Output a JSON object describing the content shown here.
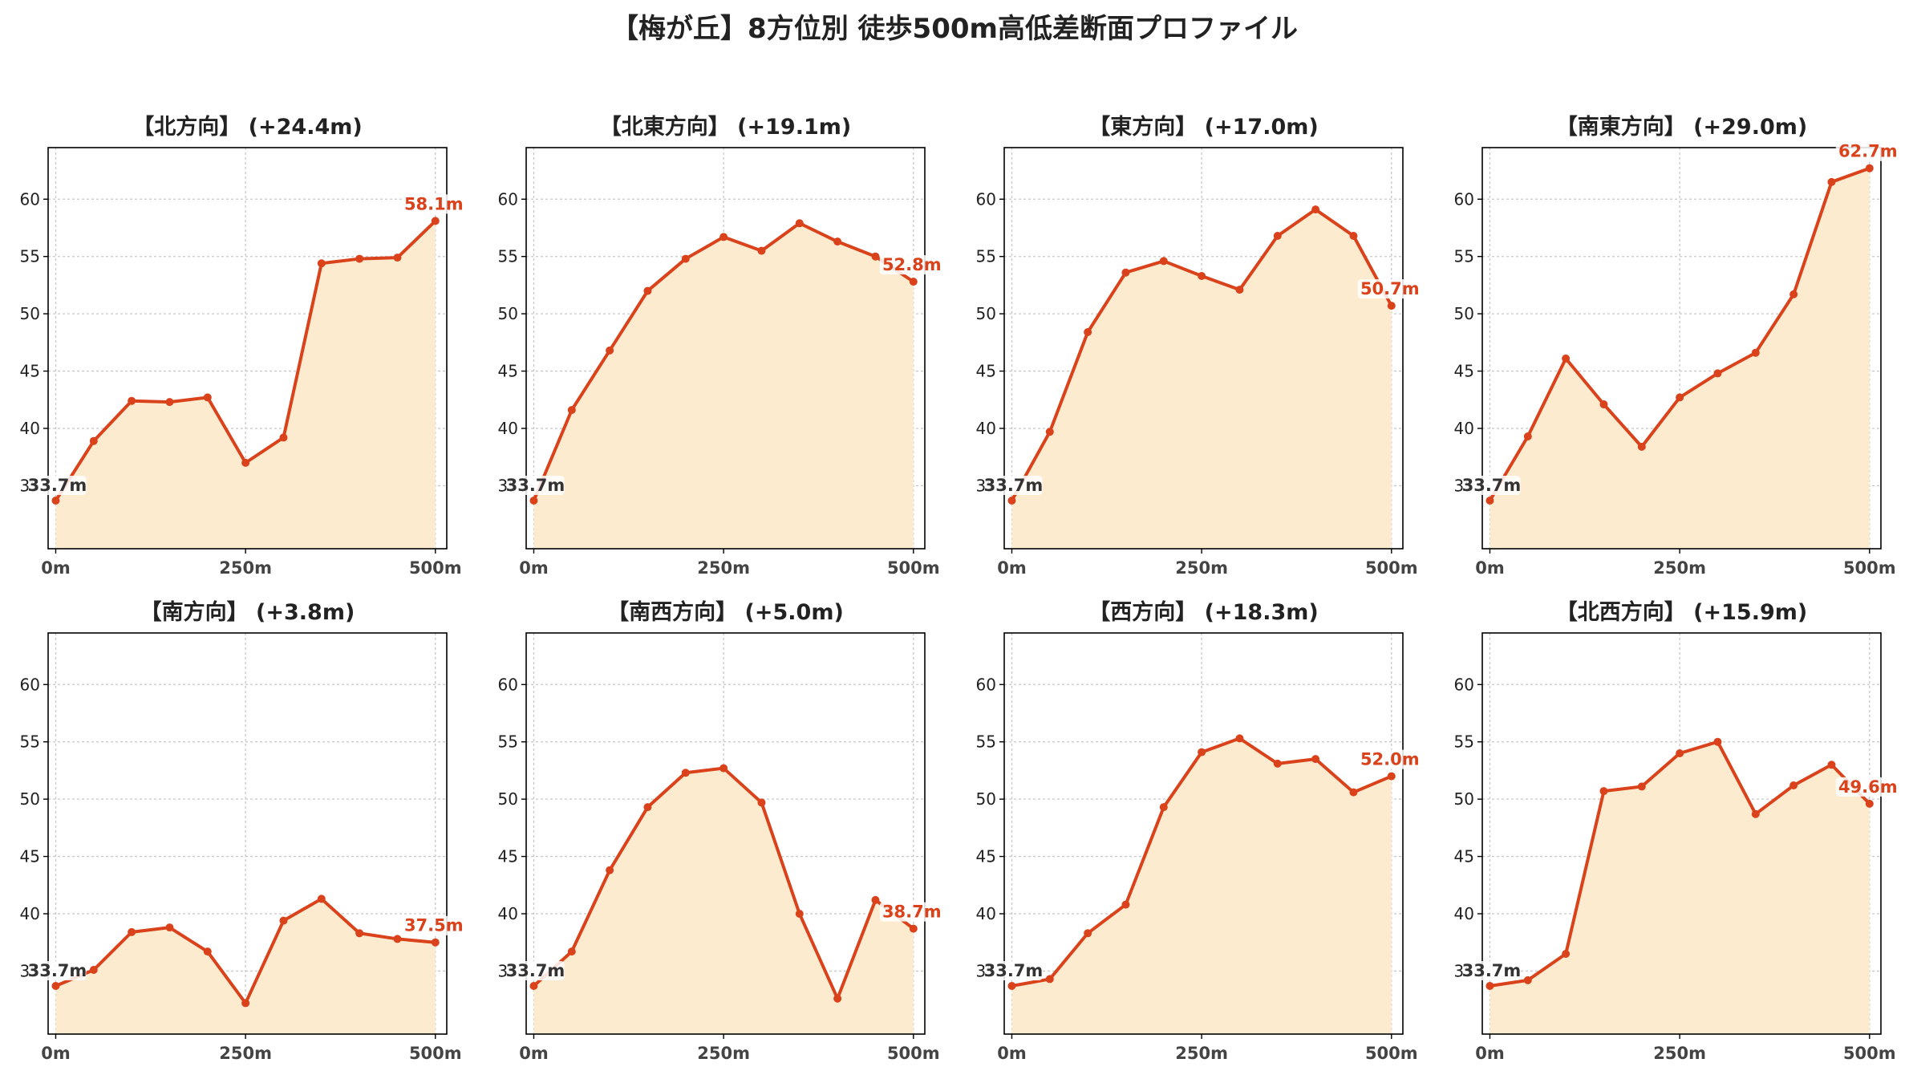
{
  "figure": {
    "title": "【梅が丘】8方位別 徒歩500m高低差断面プロファイル"
  },
  "colors": {
    "line": "#d9421a",
    "fill": "#fdebd0",
    "start_label": "#333333",
    "grid": "#c8c8c8",
    "axis": "#000000"
  },
  "chart_data": [
    {
      "type": "area",
      "title": "【北方向】 (+24.4m)",
      "x": [
        0,
        50,
        100,
        150,
        200,
        250,
        300,
        350,
        400,
        450,
        500
      ],
      "xticks": [
        0,
        250,
        500
      ],
      "xtick_labels": [
        "0m",
        "250m",
        "500m"
      ],
      "yticks": [
        35,
        40,
        45,
        50,
        55,
        60
      ],
      "ytick_labels": [
        "35",
        "40",
        "45",
        "50",
        "55",
        "60"
      ],
      "xlim": [
        -10,
        515
      ],
      "ylim": [
        29.5,
        64.5
      ],
      "grid": true,
      "values": [
        33.7,
        38.9,
        42.4,
        42.3,
        42.7,
        37.0,
        39.2,
        54.4,
        54.8,
        54.9,
        58.1
      ],
      "start_label": "33.7m",
      "end_label": "58.1m"
    },
    {
      "type": "area",
      "title": "【北東方向】 (+19.1m)",
      "x": [
        0,
        50,
        100,
        150,
        200,
        250,
        300,
        350,
        400,
        450,
        500
      ],
      "xticks": [
        0,
        250,
        500
      ],
      "xtick_labels": [
        "0m",
        "250m",
        "500m"
      ],
      "yticks": [
        35,
        40,
        45,
        50,
        55,
        60
      ],
      "ytick_labels": [
        "35",
        "40",
        "45",
        "50",
        "55",
        "60"
      ],
      "xlim": [
        -10,
        515
      ],
      "ylim": [
        29.5,
        64.5
      ],
      "grid": true,
      "values": [
        33.7,
        41.6,
        46.8,
        52.0,
        54.8,
        56.7,
        55.5,
        57.9,
        56.3,
        55.0,
        52.8
      ],
      "start_label": "33.7m",
      "end_label": "52.8m"
    },
    {
      "type": "area",
      "title": "【東方向】 (+17.0m)",
      "x": [
        0,
        50,
        100,
        150,
        200,
        250,
        300,
        350,
        400,
        450,
        500
      ],
      "xticks": [
        0,
        250,
        500
      ],
      "xtick_labels": [
        "0m",
        "250m",
        "500m"
      ],
      "yticks": [
        35,
        40,
        45,
        50,
        55,
        60
      ],
      "ytick_labels": [
        "35",
        "40",
        "45",
        "50",
        "55",
        "60"
      ],
      "xlim": [
        -10,
        515
      ],
      "ylim": [
        29.5,
        64.5
      ],
      "grid": true,
      "values": [
        33.7,
        39.7,
        48.4,
        53.6,
        54.6,
        53.3,
        52.1,
        56.8,
        59.1,
        56.8,
        50.7
      ],
      "start_label": "33.7m",
      "end_label": "50.7m"
    },
    {
      "type": "area",
      "title": "【南東方向】 (+29.0m)",
      "x": [
        0,
        50,
        100,
        150,
        200,
        250,
        300,
        350,
        400,
        450,
        500
      ],
      "xticks": [
        0,
        250,
        500
      ],
      "xtick_labels": [
        "0m",
        "250m",
        "500m"
      ],
      "yticks": [
        35,
        40,
        45,
        50,
        55,
        60
      ],
      "ytick_labels": [
        "35",
        "40",
        "45",
        "50",
        "55",
        "60"
      ],
      "xlim": [
        -10,
        515
      ],
      "ylim": [
        29.5,
        64.5
      ],
      "grid": true,
      "values": [
        33.7,
        39.3,
        46.1,
        42.1,
        38.4,
        42.7,
        44.8,
        46.6,
        51.7,
        61.5,
        62.7
      ],
      "start_label": "33.7m",
      "end_label": "62.7m"
    },
    {
      "type": "area",
      "title": "【南方向】 (+3.8m)",
      "x": [
        0,
        50,
        100,
        150,
        200,
        250,
        300,
        350,
        400,
        450,
        500
      ],
      "xticks": [
        0,
        250,
        500
      ],
      "xtick_labels": [
        "0m",
        "250m",
        "500m"
      ],
      "yticks": [
        35,
        40,
        45,
        50,
        55,
        60
      ],
      "ytick_labels": [
        "35",
        "40",
        "45",
        "50",
        "55",
        "60"
      ],
      "xlim": [
        -10,
        515
      ],
      "ylim": [
        29.5,
        64.5
      ],
      "grid": true,
      "values": [
        33.7,
        35.1,
        38.4,
        38.8,
        36.7,
        32.2,
        39.4,
        41.3,
        38.3,
        37.8,
        37.5
      ],
      "start_label": "33.7m",
      "end_label": "37.5m"
    },
    {
      "type": "area",
      "title": "【南西方向】 (+5.0m)",
      "x": [
        0,
        50,
        100,
        150,
        200,
        250,
        300,
        350,
        400,
        450,
        500
      ],
      "xticks": [
        0,
        250,
        500
      ],
      "xtick_labels": [
        "0m",
        "250m",
        "500m"
      ],
      "yticks": [
        35,
        40,
        45,
        50,
        55,
        60
      ],
      "ytick_labels": [
        "35",
        "40",
        "45",
        "50",
        "55",
        "60"
      ],
      "xlim": [
        -10,
        515
      ],
      "ylim": [
        29.5,
        64.5
      ],
      "grid": true,
      "values": [
        33.7,
        36.7,
        43.8,
        49.3,
        52.3,
        52.7,
        49.7,
        40.0,
        32.6,
        41.2,
        38.7
      ],
      "start_label": "33.7m",
      "end_label": "38.7m"
    },
    {
      "type": "area",
      "title": "【西方向】 (+18.3m)",
      "x": [
        0,
        50,
        100,
        150,
        200,
        250,
        300,
        350,
        400,
        450,
        500
      ],
      "xticks": [
        0,
        250,
        500
      ],
      "xtick_labels": [
        "0m",
        "250m",
        "500m"
      ],
      "yticks": [
        35,
        40,
        45,
        50,
        55,
        60
      ],
      "ytick_labels": [
        "35",
        "40",
        "45",
        "50",
        "55",
        "60"
      ],
      "xlim": [
        -10,
        515
      ],
      "ylim": [
        29.5,
        64.5
      ],
      "grid": true,
      "values": [
        33.7,
        34.3,
        38.3,
        40.8,
        49.3,
        54.1,
        55.3,
        53.1,
        53.5,
        50.6,
        52.0
      ],
      "start_label": "33.7m",
      "end_label": "52.0m"
    },
    {
      "type": "area",
      "title": "【北西方向】 (+15.9m)",
      "x": [
        0,
        50,
        100,
        150,
        200,
        250,
        300,
        350,
        400,
        450,
        500
      ],
      "xticks": [
        0,
        250,
        500
      ],
      "xtick_labels": [
        "0m",
        "250m",
        "500m"
      ],
      "yticks": [
        35,
        40,
        45,
        50,
        55,
        60
      ],
      "ytick_labels": [
        "35",
        "40",
        "45",
        "50",
        "55",
        "60"
      ],
      "xlim": [
        -10,
        515
      ],
      "ylim": [
        29.5,
        64.5
      ],
      "grid": true,
      "values": [
        33.7,
        34.2,
        36.5,
        50.7,
        51.1,
        54.0,
        55.0,
        48.7,
        51.2,
        53.0,
        49.6
      ],
      "start_label": "33.7m",
      "end_label": "49.6m"
    }
  ]
}
